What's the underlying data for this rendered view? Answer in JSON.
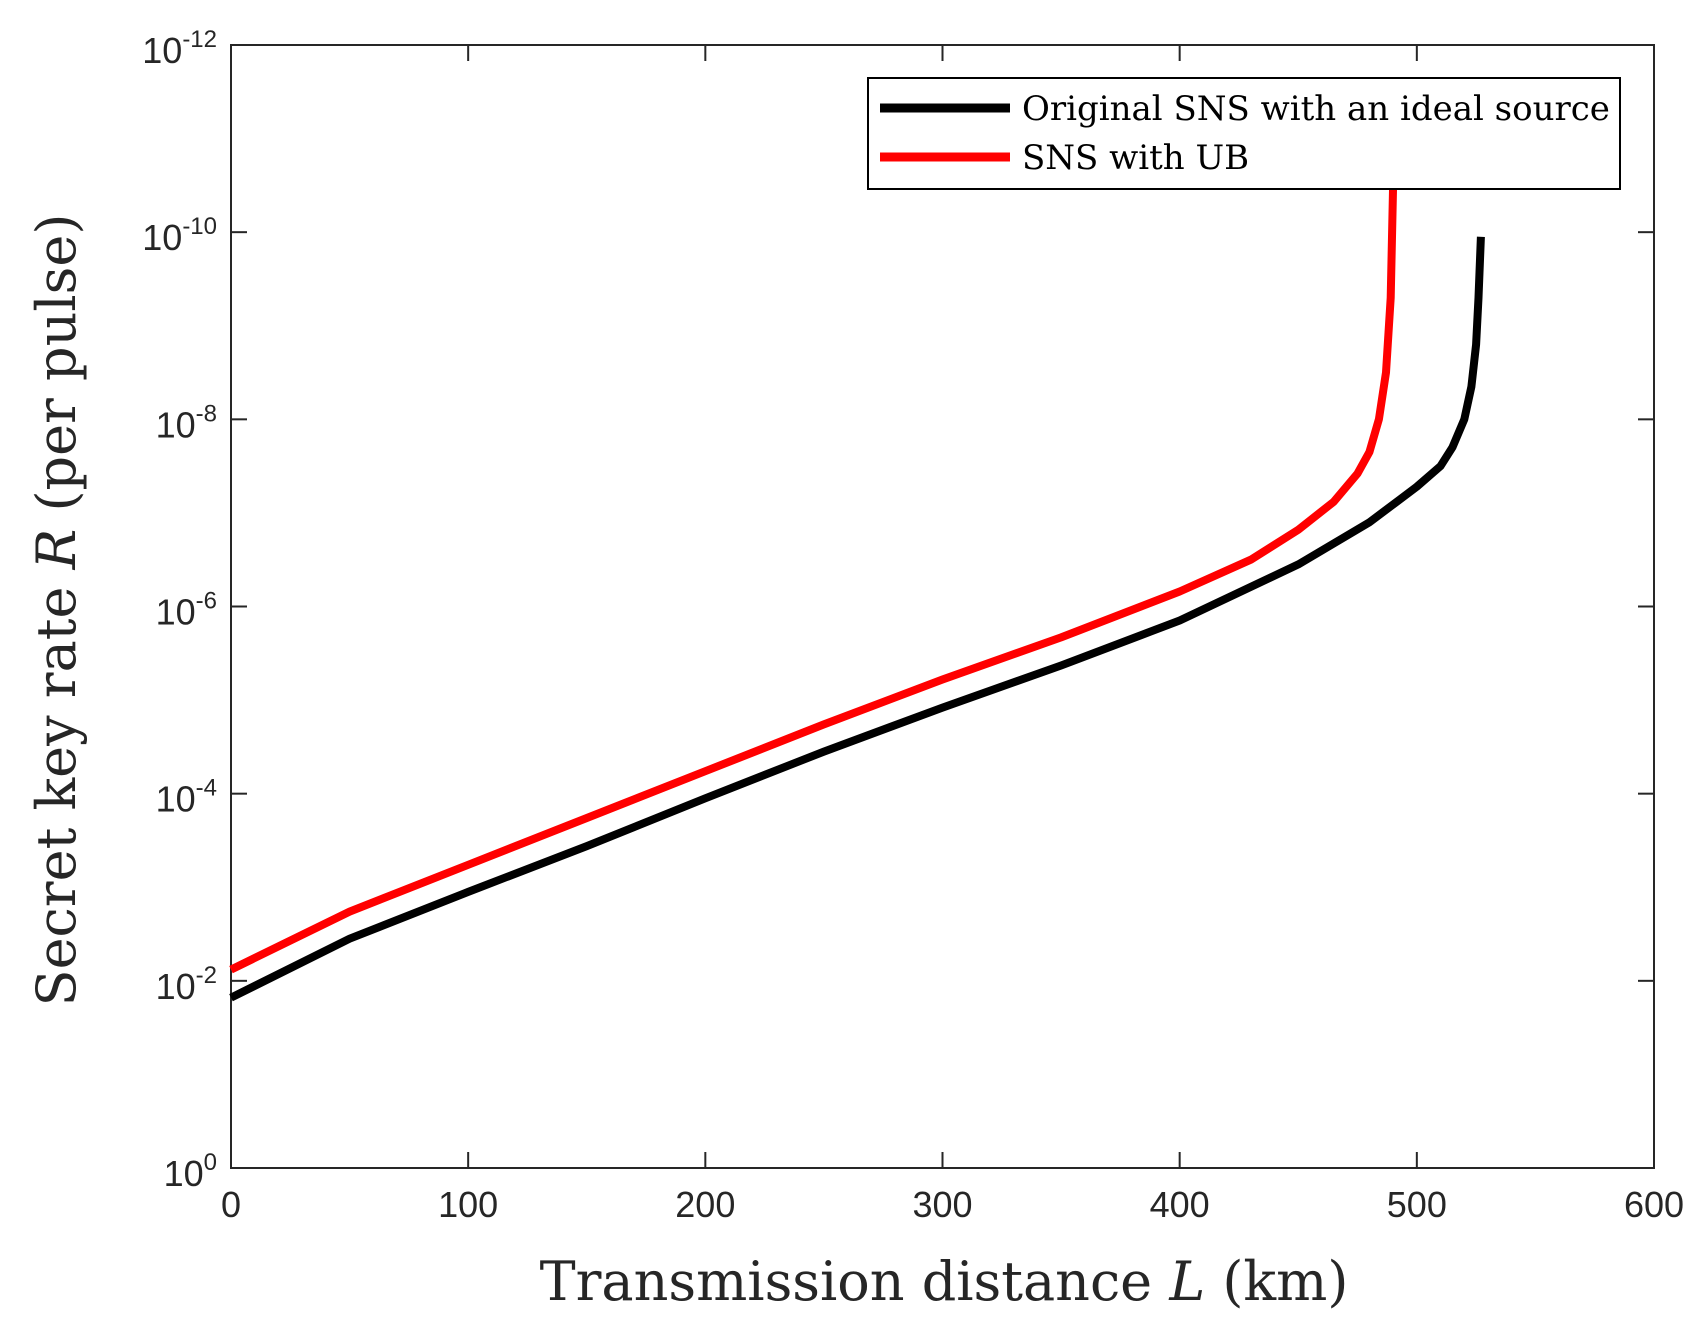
{
  "chart_data": {
    "type": "line",
    "title": "",
    "xlabel": "Transmission distance L (km)",
    "xlabel_parts": {
      "before": "Transmission distance ",
      "var": "L",
      "after": " (km)"
    },
    "ylabel": "Secret key rate R (per pulse)",
    "ylabel_parts": {
      "before": "Secret key rate ",
      "var": "R",
      "after": " (per pulse)"
    },
    "x_scale": "linear",
    "y_scale": "log",
    "xlim": [
      0,
      600
    ],
    "ylim_exp": [
      -12,
      0
    ],
    "x_ticks": [
      0,
      100,
      200,
      300,
      400,
      500,
      600
    ],
    "x_tick_labels": [
      "0",
      "100",
      "200",
      "300",
      "400",
      "500",
      "600"
    ],
    "y_tick_exponents": [
      0,
      -2,
      -4,
      -6,
      -8,
      -10,
      -12
    ],
    "y_tick_labels": [
      {
        "base": "10",
        "exp": "0"
      },
      {
        "base": "10",
        "exp": "-2"
      },
      {
        "base": "10",
        "exp": "-4"
      },
      {
        "base": "10",
        "exp": "-6"
      },
      {
        "base": "10",
        "exp": "-8"
      },
      {
        "base": "10",
        "exp": "-10"
      },
      {
        "base": "10",
        "exp": "-12"
      }
    ],
    "grid": false,
    "legend_position": "top-right",
    "series": [
      {
        "name": "Original SNS with an ideal source",
        "color": "#000000",
        "x": [
          0,
          50,
          100,
          150,
          200,
          250,
          300,
          350,
          400,
          450,
          480,
          500,
          510,
          515,
          520,
          523,
          525,
          526,
          527
        ],
        "log10_y": [
          -1.82,
          -2.45,
          -2.95,
          -3.44,
          -3.95,
          -4.45,
          -4.92,
          -5.37,
          -5.85,
          -6.45,
          -6.9,
          -7.28,
          -7.5,
          -7.7,
          -8.0,
          -8.35,
          -8.8,
          -9.3,
          -9.95
        ]
      },
      {
        "name": "SNS with UB",
        "color": "#ff0000",
        "x": [
          0,
          50,
          100,
          150,
          200,
          250,
          300,
          350,
          400,
          430,
          450,
          465,
          475,
          480,
          484,
          487,
          489,
          490
        ],
        "log10_y": [
          -2.12,
          -2.74,
          -3.24,
          -3.74,
          -4.24,
          -4.74,
          -5.22,
          -5.67,
          -6.16,
          -6.5,
          -6.82,
          -7.12,
          -7.42,
          -7.65,
          -8.0,
          -8.5,
          -9.3,
          -10.5
        ]
      }
    ]
  },
  "colors": {
    "axis": "#262626",
    "background": "#ffffff",
    "legend_border": "#000000"
  }
}
